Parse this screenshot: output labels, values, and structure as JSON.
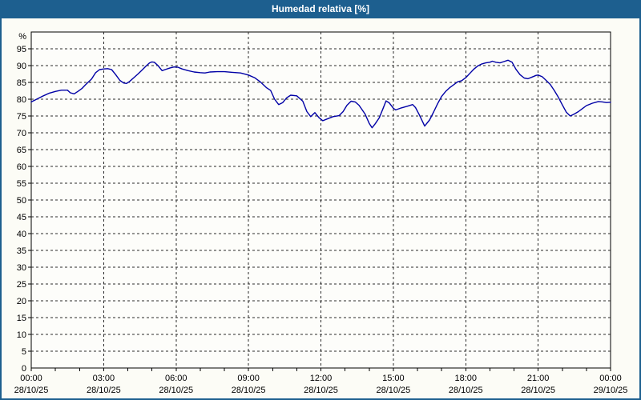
{
  "title": "Humedad relativa [%]",
  "colors": {
    "accent": "#1D5F8F",
    "window_bg": "#FCFCF6",
    "plot_bg": "#FDFDFA",
    "plot_border": "#000000",
    "grid": "#2B2B2B",
    "line": "#0000A6",
    "label": "#000000",
    "title_text": "#FFFFFF"
  },
  "chart_data": {
    "type": "line",
    "title": "Humedad relativa [%]",
    "y_unit_label": "%",
    "ylim": [
      0,
      100
    ],
    "y_tick_step": 5,
    "y_ticks": [
      0,
      5,
      10,
      15,
      20,
      25,
      30,
      35,
      40,
      45,
      50,
      55,
      60,
      65,
      70,
      75,
      80,
      85,
      90,
      95
    ],
    "grid": "dashed, horizontal every 5%, vertical every 3h",
    "legend_position": "none",
    "x_ticks": [
      {
        "hour": 0,
        "time": "00:00",
        "date": "28/10/25"
      },
      {
        "hour": 3,
        "time": "03:00",
        "date": "28/10/25"
      },
      {
        "hour": 6,
        "time": "06:00",
        "date": "28/10/25"
      },
      {
        "hour": 9,
        "time": "09:00",
        "date": "28/10/25"
      },
      {
        "hour": 12,
        "time": "12:00",
        "date": "28/10/25"
      },
      {
        "hour": 15,
        "time": "15:00",
        "date": "28/10/25"
      },
      {
        "hour": 18,
        "time": "18:00",
        "date": "28/10/25"
      },
      {
        "hour": 21,
        "time": "21:00",
        "date": "28/10/25"
      },
      {
        "hour": 24,
        "time": "00:00",
        "date": "29/10/25"
      }
    ],
    "minor_x_tick_every_hours": 1,
    "series": [
      {
        "name": "Humedad relativa",
        "unit": "%",
        "color": "#0000A6",
        "points_hour_value": [
          [
            0,
            79.2
          ],
          [
            0.25,
            80.1
          ],
          [
            0.5,
            81.0
          ],
          [
            0.75,
            81.8
          ],
          [
            1,
            82.3
          ],
          [
            1.25,
            82.7
          ],
          [
            1.5,
            82.7
          ],
          [
            1.62,
            81.9
          ],
          [
            1.78,
            81.6
          ],
          [
            1.95,
            82.4
          ],
          [
            2.1,
            83.2
          ],
          [
            2.25,
            84.3
          ],
          [
            2.5,
            86.0
          ],
          [
            2.67,
            87.9
          ],
          [
            2.83,
            88.8
          ],
          [
            3,
            89.0
          ],
          [
            3.17,
            89.1
          ],
          [
            3.33,
            88.8
          ],
          [
            3.5,
            87.3
          ],
          [
            3.67,
            85.6
          ],
          [
            3.83,
            84.8
          ],
          [
            3.95,
            84.7
          ],
          [
            4.08,
            85.3
          ],
          [
            4.25,
            86.4
          ],
          [
            4.42,
            87.5
          ],
          [
            4.58,
            88.6
          ],
          [
            4.75,
            89.8
          ],
          [
            4.9,
            90.8
          ],
          [
            5,
            91.1
          ],
          [
            5.1,
            91.0
          ],
          [
            5.25,
            90.0
          ],
          [
            5.42,
            88.5
          ],
          [
            5.58,
            88.9
          ],
          [
            5.75,
            89.3
          ],
          [
            5.92,
            89.6
          ],
          [
            6.08,
            89.5
          ],
          [
            6.25,
            89.0
          ],
          [
            6.5,
            88.5
          ],
          [
            6.75,
            88.1
          ],
          [
            7,
            87.9
          ],
          [
            7.2,
            87.8
          ],
          [
            7.4,
            88.1
          ],
          [
            7.7,
            88.2
          ],
          [
            8,
            88.2
          ],
          [
            8.33,
            88.0
          ],
          [
            8.67,
            87.8
          ],
          [
            9,
            87.2
          ],
          [
            9.25,
            86.4
          ],
          [
            9.5,
            85.1
          ],
          [
            9.75,
            83.4
          ],
          [
            9.92,
            82.6
          ],
          [
            10.08,
            80.0
          ],
          [
            10.25,
            78.4
          ],
          [
            10.42,
            79.0
          ],
          [
            10.58,
            80.4
          ],
          [
            10.75,
            81.2
          ],
          [
            11,
            81.0
          ],
          [
            11.25,
            79.4
          ],
          [
            11.42,
            76.3
          ],
          [
            11.58,
            74.8
          ],
          [
            11.75,
            76.0
          ],
          [
            11.92,
            74.5
          ],
          [
            12.08,
            73.6
          ],
          [
            12.25,
            74.1
          ],
          [
            12.5,
            74.8
          ],
          [
            12.75,
            75.1
          ],
          [
            12.92,
            76.3
          ],
          [
            13.08,
            78.2
          ],
          [
            13.25,
            79.4
          ],
          [
            13.42,
            79.2
          ],
          [
            13.58,
            78.2
          ],
          [
            13.83,
            75.6
          ],
          [
            14,
            72.8
          ],
          [
            14.12,
            71.5
          ],
          [
            14.25,
            72.7
          ],
          [
            14.42,
            74.5
          ],
          [
            14.58,
            77.3
          ],
          [
            14.7,
            79.5
          ],
          [
            14.83,
            78.9
          ],
          [
            15,
            77.3
          ],
          [
            15.1,
            76.8
          ],
          [
            15.33,
            77.4
          ],
          [
            15.58,
            77.9
          ],
          [
            15.8,
            78.4
          ],
          [
            15.92,
            77.5
          ],
          [
            16.08,
            75.3
          ],
          [
            16.3,
            72.0
          ],
          [
            16.5,
            73.8
          ],
          [
            16.67,
            76.2
          ],
          [
            16.83,
            78.6
          ],
          [
            17,
            80.8
          ],
          [
            17.17,
            82.3
          ],
          [
            17.33,
            83.4
          ],
          [
            17.5,
            84.3
          ],
          [
            17.67,
            85.2
          ],
          [
            17.83,
            85.5
          ],
          [
            18,
            86.4
          ],
          [
            18.17,
            87.7
          ],
          [
            18.33,
            88.9
          ],
          [
            18.5,
            89.9
          ],
          [
            18.67,
            90.5
          ],
          [
            18.83,
            90.8
          ],
          [
            19,
            91.0
          ],
          [
            19.1,
            91.3
          ],
          [
            19.25,
            91.0
          ],
          [
            19.42,
            90.8
          ],
          [
            19.58,
            91.2
          ],
          [
            19.75,
            91.6
          ],
          [
            19.92,
            91.0
          ],
          [
            20.08,
            88.9
          ],
          [
            20.25,
            87.3
          ],
          [
            20.42,
            86.3
          ],
          [
            20.58,
            86.1
          ],
          [
            20.75,
            86.6
          ],
          [
            20.92,
            87.1
          ],
          [
            21,
            87.2
          ],
          [
            21.17,
            86.7
          ],
          [
            21.33,
            85.6
          ],
          [
            21.5,
            84.4
          ],
          [
            21.67,
            82.6
          ],
          [
            21.83,
            80.7
          ],
          [
            22,
            78.3
          ],
          [
            22.17,
            76.1
          ],
          [
            22.33,
            75.0
          ],
          [
            22.5,
            75.6
          ],
          [
            22.67,
            76.3
          ],
          [
            22.83,
            77.2
          ],
          [
            23,
            78.1
          ],
          [
            23.25,
            78.8
          ],
          [
            23.5,
            79.3
          ],
          [
            23.67,
            79.2
          ],
          [
            23.83,
            79.0
          ],
          [
            24,
            79.1
          ]
        ]
      }
    ]
  }
}
